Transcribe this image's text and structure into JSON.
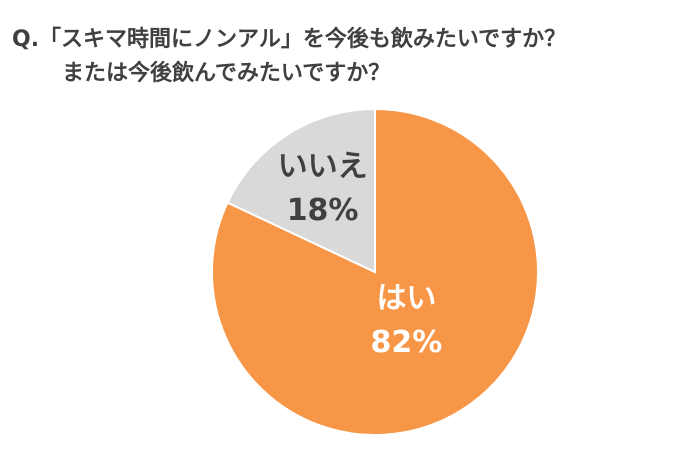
{
  "chart_data": {
    "type": "pie",
    "title": [
      "Q.「スキマ時間にノンアル」を今後も飲みたいですか？",
      "または今後飲んでみたいですか？"
    ],
    "categories": [
      "はい",
      "いいえ"
    ],
    "values": [
      82,
      18
    ],
    "value_labels": [
      "82%",
      "18%"
    ],
    "colors": [
      "#f79646",
      "#d9d9d9"
    ],
    "label_colors": [
      "#ffffff",
      "#404040"
    ]
  }
}
